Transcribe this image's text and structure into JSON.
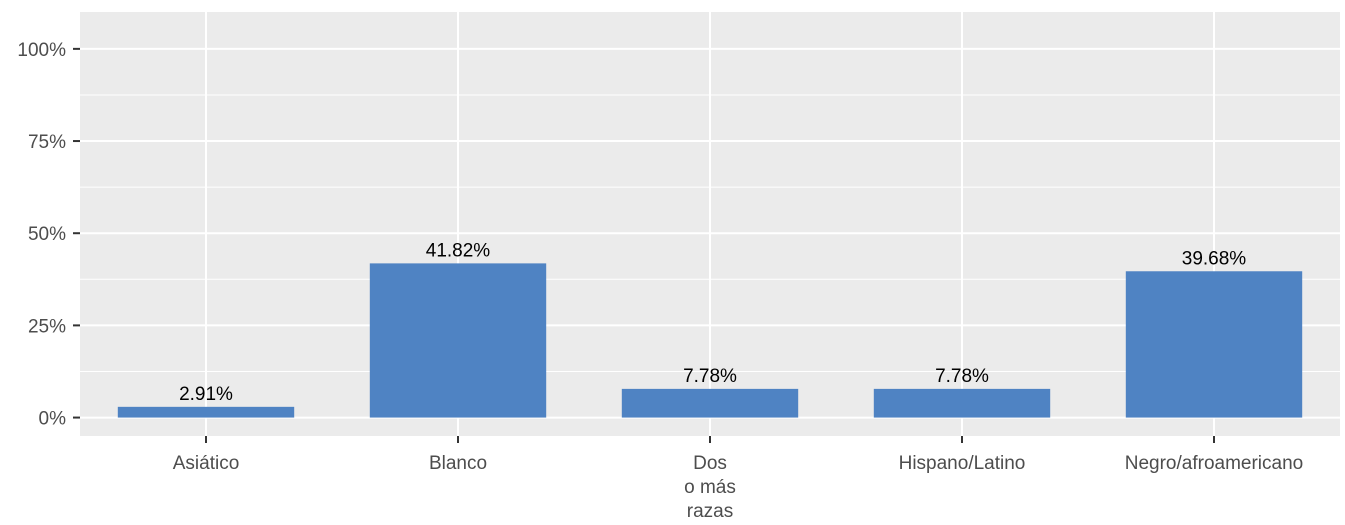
{
  "chart_data": {
    "type": "bar",
    "categories": [
      "Asiático",
      "Blanco",
      "Dos\no más\nrazas",
      "Hispano/Latino",
      "Negro/afroamericano"
    ],
    "values": [
      2.91,
      41.82,
      7.78,
      7.78,
      39.68
    ],
    "data_labels": [
      "2.91%",
      "41.82%",
      "7.78%",
      "7.78%",
      "39.68%"
    ],
    "yticks": [
      0,
      25,
      50,
      75,
      100
    ],
    "ytick_labels": [
      "0%",
      "25%",
      "50%",
      "75%",
      "100%"
    ],
    "ylim": [
      -5,
      110
    ],
    "grid": true,
    "colors": {
      "bar": "#4f83c3",
      "panel": "#ebebeb",
      "grid": "#ffffff"
    }
  }
}
